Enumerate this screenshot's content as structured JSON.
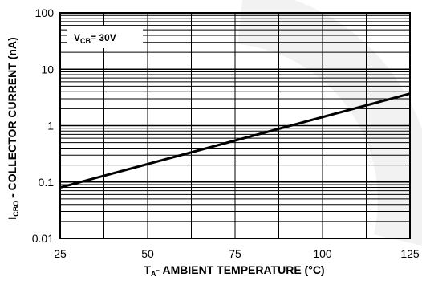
{
  "chart_data": {
    "type": "line",
    "title": "",
    "xlabel": {
      "main": "T",
      "sub": "A",
      "rest": "- AMBIENT TEMPERATURE (°C)"
    },
    "ylabel": {
      "main": "I",
      "sub": "CBO",
      "rest": " - COLLECTOR CURRENT (nA)"
    },
    "xlim": [
      25,
      125
    ],
    "ylim": [
      0.01,
      100
    ],
    "yscale": "log",
    "grid": true,
    "x_ticks": [
      25,
      50,
      75,
      100,
      125
    ],
    "x_tick_labels": [
      "25",
      "50",
      "75",
      "100",
      "125"
    ],
    "y_ticks": [
      0.01,
      0.1,
      1,
      10,
      100
    ],
    "y_tick_labels": [
      "0.01",
      "0.1",
      "1",
      "10",
      "100"
    ],
    "annotation": {
      "main": "V",
      "sub": "CB",
      "rest": "= 30V"
    },
    "series": [
      {
        "x": [
          25,
          125
        ],
        "y": [
          0.08,
          3.7
        ]
      }
    ]
  }
}
